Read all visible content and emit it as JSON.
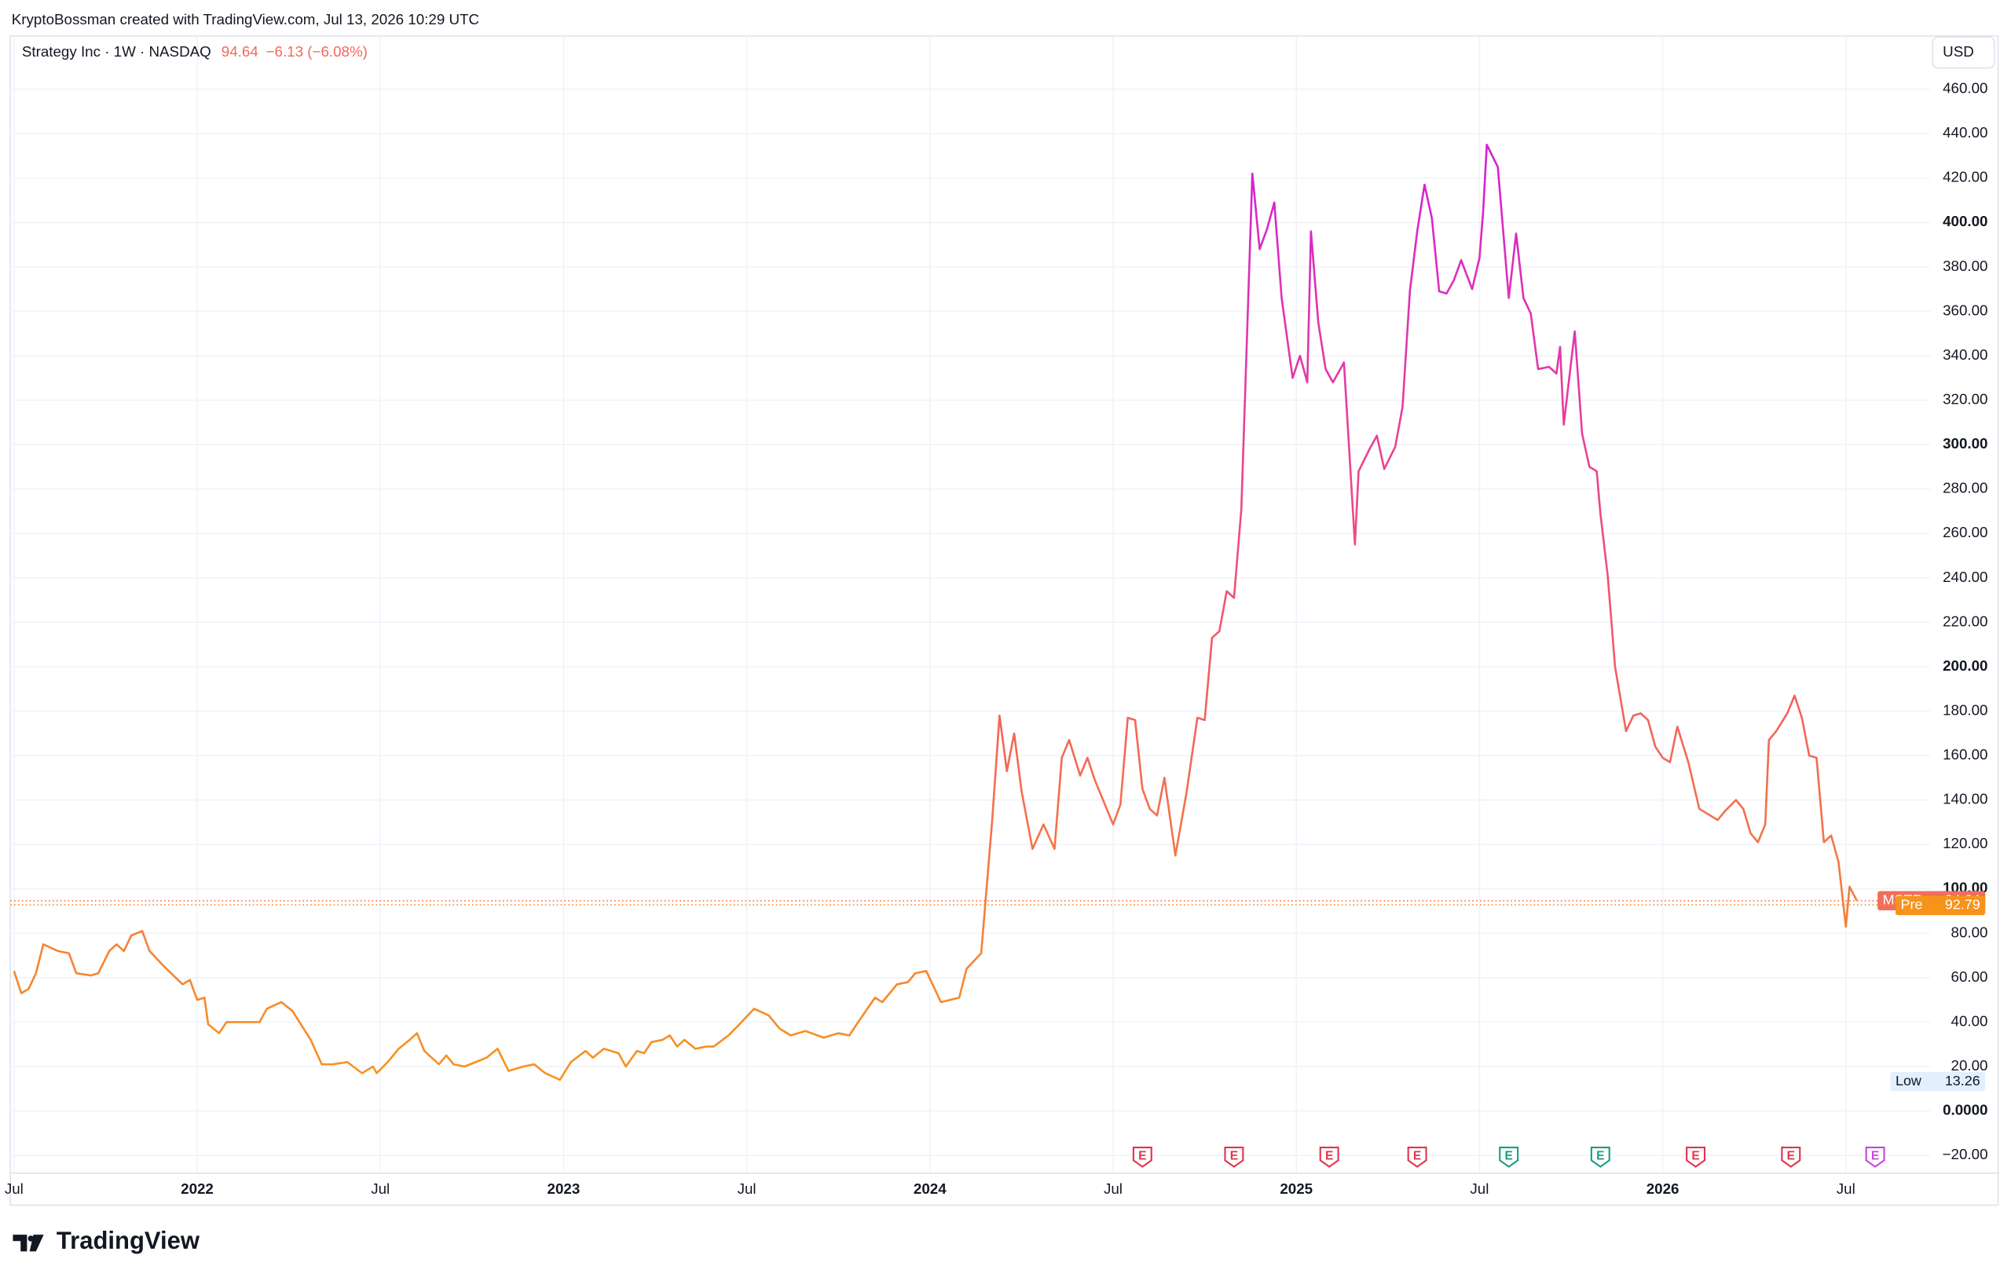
{
  "header": {
    "attribution": "KryptoBossman created with TradingView.com, Jul 13, 2026 10:29 UTC"
  },
  "chart_data": {
    "type": "line",
    "title": "Strategy Inc · 1W · NASDAQ",
    "change": "−6.13 (−6.08%)",
    "currency": "USD",
    "legend_color": "#f2685a",
    "series": [
      {
        "name": "MSTR",
        "color": "#f26d5b",
        "colors": [
          "#f7941d",
          "#f2566f",
          "#d41fd9"
        ],
        "x": [
          2021.5,
          2021.52,
          2021.54,
          2021.56,
          2021.58,
          2021.62,
          2021.65,
          2021.67,
          2021.71,
          2021.73,
          2021.76,
          2021.78,
          2021.8,
          2021.82,
          2021.85,
          2021.87,
          2021.91,
          2021.96,
          2021.98,
          2022.0,
          2022.02,
          2022.03,
          2022.06,
          2022.08,
          2022.1,
          2022.13,
          2022.17,
          2022.19,
          2022.23,
          2022.26,
          2022.31,
          2022.34,
          2022.37,
          2022.41,
          2022.45,
          2022.48,
          2022.49,
          2022.52,
          2022.55,
          2022.58,
          2022.6,
          2022.62,
          2022.66,
          2022.68,
          2022.7,
          2022.73,
          2022.76,
          2022.79,
          2022.82,
          2022.85,
          2022.89,
          2022.92,
          2022.95,
          2022.99,
          2023.02,
          2023.06,
          2023.08,
          2023.11,
          2023.15,
          2023.17,
          2023.2,
          2023.22,
          2023.24,
          2023.27,
          2023.29,
          2023.31,
          2023.33,
          2023.36,
          2023.39,
          2023.41,
          2023.45,
          2023.48,
          2023.52,
          2023.56,
          2023.59,
          2023.62,
          2023.66,
          2023.71,
          2023.75,
          2023.78,
          2023.8,
          2023.85,
          2023.87,
          2023.91,
          2023.94,
          2023.96,
          2023.99,
          2024.03,
          2024.08,
          2024.1,
          2024.14,
          2024.17,
          2024.19,
          2024.21,
          2024.23,
          2024.25,
          2024.28,
          2024.31,
          2024.34,
          2024.36,
          2024.38,
          2024.41,
          2024.43,
          2024.45,
          2024.5,
          2024.52,
          2024.54,
          2024.56,
          2024.58,
          2024.6,
          2024.62,
          2024.64,
          2024.67,
          2024.7,
          2024.73,
          2024.75,
          2024.77,
          2024.79,
          2024.81,
          2024.83,
          2024.85,
          2024.88,
          2024.9,
          2024.92,
          2024.94,
          2024.96,
          2024.99,
          2025.01,
          2025.03,
          2025.04,
          2025.06,
          2025.08,
          2025.1,
          2025.13,
          2025.16,
          2025.17,
          2025.2,
          2025.22,
          2025.24,
          2025.27,
          2025.29,
          2025.31,
          2025.33,
          2025.35,
          2025.37,
          2025.39,
          2025.41,
          2025.43,
          2025.45,
          2025.48,
          2025.5,
          2025.51,
          2025.52,
          2025.55,
          2025.58,
          2025.6,
          2025.62,
          2025.64,
          2025.66,
          2025.69,
          2025.71,
          2025.72,
          2025.73,
          2025.76,
          2025.78,
          2025.8,
          2025.82,
          2025.83,
          2025.85,
          2025.87,
          2025.9,
          2025.92,
          2025.94,
          2025.96,
          2025.98,
          2026.0,
          2026.02,
          2026.04,
          2026.07,
          2026.1,
          2026.13,
          2026.15,
          2026.17,
          2026.2,
          2026.22,
          2026.24,
          2026.26,
          2026.28,
          2026.29,
          2026.31,
          2026.34,
          2026.36,
          2026.38,
          2026.4,
          2026.42,
          2026.44,
          2026.46,
          2026.48,
          2026.5,
          2026.51,
          2026.53
        ],
        "values": [
          63,
          53,
          55,
          62,
          75,
          72,
          71,
          62,
          61,
          62,
          72,
          75,
          72,
          79,
          81,
          72,
          65,
          57,
          59,
          50,
          51,
          39,
          35,
          40,
          40,
          40,
          40,
          46,
          49,
          45,
          32,
          21,
          21,
          22,
          17,
          20,
          17,
          22,
          28,
          32,
          35,
          27,
          21,
          25,
          21,
          20,
          22,
          24,
          28,
          18,
          20,
          21,
          17,
          14,
          22,
          27,
          24,
          28,
          26,
          20,
          27,
          26,
          31,
          32,
          34,
          29,
          32,
          28,
          29,
          29,
          34,
          39,
          46,
          43,
          37,
          34,
          36,
          33,
          35,
          34,
          39,
          51,
          49,
          57,
          58,
          62,
          63,
          49,
          51,
          64,
          71,
          131,
          178,
          153,
          170,
          144,
          118,
          129,
          118,
          159,
          167,
          151,
          159,
          149,
          129,
          138,
          177,
          176,
          145,
          136,
          133,
          150,
          115,
          143,
          177,
          176,
          213,
          216,
          234,
          231,
          271,
          422,
          388,
          397,
          409,
          366,
          330,
          340,
          328,
          396,
          355,
          334,
          328,
          337,
          255,
          288,
          298,
          304,
          289,
          299,
          317,
          369,
          396,
          417,
          402,
          369,
          368,
          374,
          383,
          370,
          384,
          405,
          435,
          425,
          366,
          395,
          366,
          359,
          334,
          335,
          332,
          344,
          309,
          351,
          305,
          290,
          288,
          269,
          241,
          200,
          171,
          178,
          179,
          176,
          164,
          159,
          157,
          173,
          157,
          136,
          133,
          131,
          135,
          140,
          136,
          125,
          121,
          129,
          167,
          171,
          179,
          187,
          177,
          160,
          159,
          121,
          124,
          112,
          83,
          101,
          94.64
        ]
      }
    ],
    "pre": {
      "label": "Pre",
      "value": 92.79,
      "color": "#f7931a"
    },
    "low": {
      "label": "Low",
      "value": 13.26
    },
    "xlim": [
      2021.49,
      2026.73
    ],
    "ylim": [
      -28,
      484
    ],
    "xticks": [
      {
        "value": 2021.5,
        "label": "Jul"
      },
      2022,
      {
        "value": 2022.5,
        "label": "Jul"
      },
      2023,
      {
        "value": 2023.5,
        "label": "Jul"
      },
      2024,
      {
        "value": 2024.5,
        "label": "Jul"
      },
      2025,
      {
        "value": 2025.5,
        "label": "Jul"
      },
      2026,
      {
        "value": 2026.5,
        "label": "Jul"
      }
    ],
    "yticks": [
      {
        "value": -20,
        "label": "−20.00"
      },
      {
        "value": 0,
        "label": "0.0000"
      },
      {
        "value": 20,
        "label": "20.00"
      },
      {
        "value": 40,
        "label": "40.00"
      },
      {
        "value": 60,
        "label": "60.00"
      },
      {
        "value": 80,
        "label": "80.00"
      },
      {
        "value": 100,
        "label": "100.00"
      },
      {
        "value": 120,
        "label": "120.00"
      },
      {
        "value": 140,
        "label": "140.00"
      },
      {
        "value": 160,
        "label": "160.00"
      },
      {
        "value": 180,
        "label": "180.00"
      },
      {
        "value": 200,
        "label": "200.00"
      },
      {
        "value": 220,
        "label": "220.00"
      },
      {
        "value": 240,
        "label": "240.00"
      },
      {
        "value": 260,
        "label": "260.00"
      },
      {
        "value": 280,
        "label": "280.00"
      },
      {
        "value": 300,
        "label": "300.00"
      },
      {
        "value": 320,
        "label": "320.00"
      },
      {
        "value": 340,
        "label": "340.00"
      },
      {
        "value": 360,
        "label": "360.00"
      },
      {
        "value": 380,
        "label": "380.00"
      },
      {
        "value": 400,
        "label": "400.00"
      },
      {
        "value": 420,
        "label": "420.00"
      },
      {
        "value": 440,
        "label": "440.00"
      },
      {
        "value": 460,
        "label": "460.00"
      }
    ],
    "grid": true,
    "earnings": [
      {
        "x": 2024.58,
        "label": "E",
        "color": "#e5334b"
      },
      {
        "x": 2024.83,
        "label": "E",
        "color": "#e5334b"
      },
      {
        "x": 2025.09,
        "label": "E",
        "color": "#e5334b"
      },
      {
        "x": 2025.33,
        "label": "E",
        "color": "#e5334b"
      },
      {
        "x": 2025.58,
        "label": "E",
        "color": "#1a9e82"
      },
      {
        "x": 2025.83,
        "label": "E",
        "color": "#1a9e82"
      },
      {
        "x": 2026.09,
        "label": "E",
        "color": "#e5334b"
      },
      {
        "x": 2026.35,
        "label": "E",
        "color": "#e5334b"
      },
      {
        "x": 2026.58,
        "label": "E",
        "color": "#c844e0"
      }
    ]
  },
  "footer": {
    "logo": "TradingView"
  }
}
